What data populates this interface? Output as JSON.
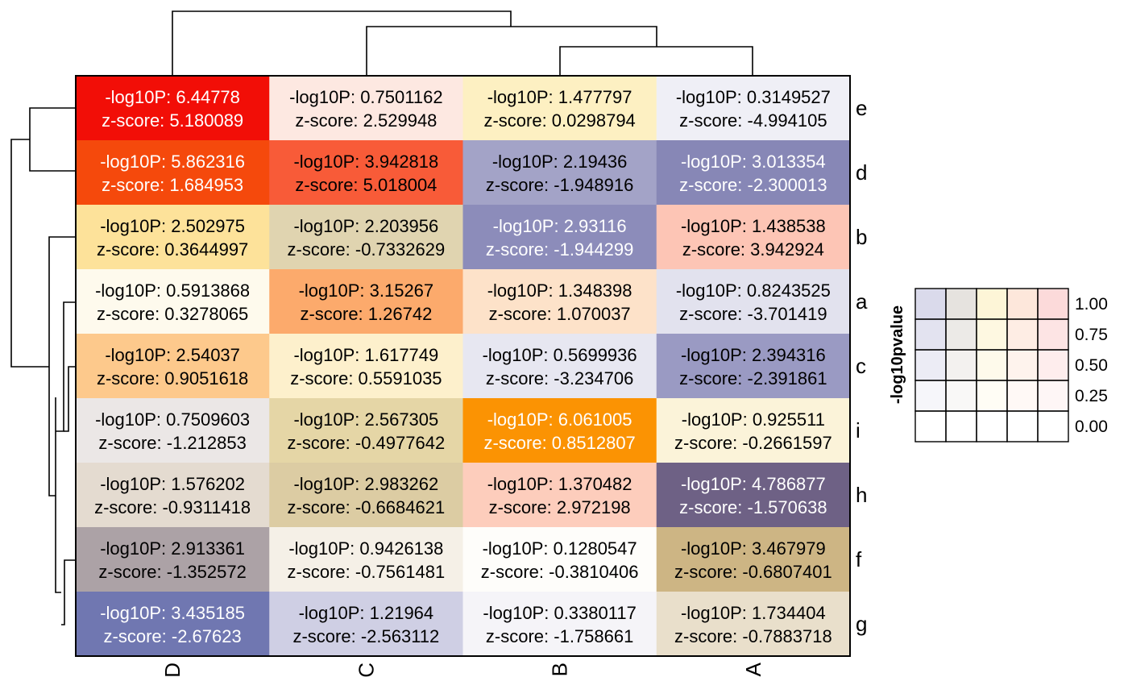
{
  "chart_data": {
    "type": "heatmap",
    "columns": [
      "D",
      "C",
      "B",
      "A"
    ],
    "rows": [
      "e",
      "d",
      "b",
      "a",
      "c",
      "i",
      "h",
      "f",
      "g"
    ],
    "value_labels": {
      "p": "-log10P: ",
      "z": "z-score: "
    },
    "cells": [
      [
        {
          "p": "6.44778",
          "z": "5.180089",
          "color": "#f20e07",
          "text": "#ffffff"
        },
        {
          "p": "0.7501162",
          "z": "2.529948",
          "color": "#fde8e1",
          "text": "#000000"
        },
        {
          "p": "1.477797",
          "z": "0.0298794",
          "color": "#fdf0c2",
          "text": "#000000"
        },
        {
          "p": "0.3149527",
          "z": "-4.994105",
          "color": "#efeff6",
          "text": "#000000"
        }
      ],
      [
        {
          "p": "5.862316",
          "z": "1.684953",
          "color": "#f5490c",
          "text": "#ffffff"
        },
        {
          "p": "3.942818",
          "z": "5.018004",
          "color": "#f85b38",
          "text": "#000000"
        },
        {
          "p": "2.19436",
          "z": "-1.948916",
          "color": "#a3a3c7",
          "text": "#000000"
        },
        {
          "p": "3.013354",
          "z": "-2.300013",
          "color": "#8787b6",
          "text": "#ffffff"
        }
      ],
      [
        {
          "p": "2.502975",
          "z": "0.3644997",
          "color": "#fde29a",
          "text": "#000000"
        },
        {
          "p": "2.203956",
          "z": "-0.7332629",
          "color": "#e0d4b0",
          "text": "#000000"
        },
        {
          "p": "2.93116",
          "z": "-1.944299",
          "color": "#8c8cba",
          "text": "#ffffff"
        },
        {
          "p": "1.438538",
          "z": "3.942924",
          "color": "#fdc5b5",
          "text": "#000000"
        }
      ],
      [
        {
          "p": "0.5913868",
          "z": "0.3278065",
          "color": "#fefaed",
          "text": "#000000"
        },
        {
          "p": "3.15267",
          "z": "1.26742",
          "color": "#fcaa6c",
          "text": "#000000"
        },
        {
          "p": "1.348398",
          "z": "1.070037",
          "color": "#fde2c9",
          "text": "#000000"
        },
        {
          "p": "0.8243525",
          "z": "-3.701419",
          "color": "#e2e2ee",
          "text": "#000000"
        }
      ],
      [
        {
          "p": "2.54037",
          "z": "0.9051618",
          "color": "#fdc98c",
          "text": "#000000"
        },
        {
          "p": "1.617749",
          "z": "0.5591035",
          "color": "#fdf0cc",
          "text": "#000000"
        },
        {
          "p": "0.5699936",
          "z": "-3.234706",
          "color": "#e7e7f1",
          "text": "#000000"
        },
        {
          "p": "2.394316",
          "z": "-2.391861",
          "color": "#9a9ac3",
          "text": "#000000"
        }
      ],
      [
        {
          "p": "0.7509603",
          "z": "-1.212853",
          "color": "#ebe7e6",
          "text": "#000000"
        },
        {
          "p": "2.567305",
          "z": "-0.4977642",
          "color": "#e5d6a6",
          "text": "#000000"
        },
        {
          "p": "6.061005",
          "z": "0.8512807",
          "color": "#fb9303",
          "text": "#ffffff"
        },
        {
          "p": "0.925511",
          "z": "-0.2661597",
          "color": "#fbf3d9",
          "text": "#000000"
        }
      ],
      [
        {
          "p": "1.576202",
          "z": "-0.9311418",
          "color": "#e4dbd0",
          "text": "#000000"
        },
        {
          "p": "2.983262",
          "z": "-0.6684621",
          "color": "#dccca3",
          "text": "#000000"
        },
        {
          "p": "1.370482",
          "z": "2.972198",
          "color": "#fdcdbc",
          "text": "#000000"
        },
        {
          "p": "4.786877",
          "z": "-1.570638",
          "color": "#6e6185",
          "text": "#ffffff"
        }
      ],
      [
        {
          "p": "2.913361",
          "z": "-1.352572",
          "color": "#aca2a6",
          "text": "#000000"
        },
        {
          "p": "0.9426138",
          "z": "-0.7561481",
          "color": "#f5f0e7",
          "text": "#000000"
        },
        {
          "p": "0.1280547",
          "z": "-0.3810406",
          "color": "#fefdfa",
          "text": "#000000"
        },
        {
          "p": "3.467979",
          "z": "-0.6807401",
          "color": "#cdb584",
          "text": "#000000"
        }
      ],
      [
        {
          "p": "3.435185",
          "z": "-2.67623",
          "color": "#7077b1",
          "text": "#ffffff"
        },
        {
          "p": "1.21964",
          "z": "-2.563112",
          "color": "#cfcfe4",
          "text": "#000000"
        },
        {
          "p": "0.3380117",
          "z": "-1.758661",
          "color": "#f5f4f8",
          "text": "#000000"
        },
        {
          "p": "1.734404",
          "z": "-0.7883718",
          "color": "#e9dfcb",
          "text": "#000000"
        }
      ]
    ],
    "legend": {
      "title": "-log10pvalue",
      "ticks": [
        "1.00",
        "0.75",
        "0.50",
        "0.25",
        "0.00"
      ],
      "hues": [
        "#6a6ab0",
        "#9c9080",
        "#f8d860",
        "#f8a070",
        "#f56d6d"
      ]
    }
  }
}
